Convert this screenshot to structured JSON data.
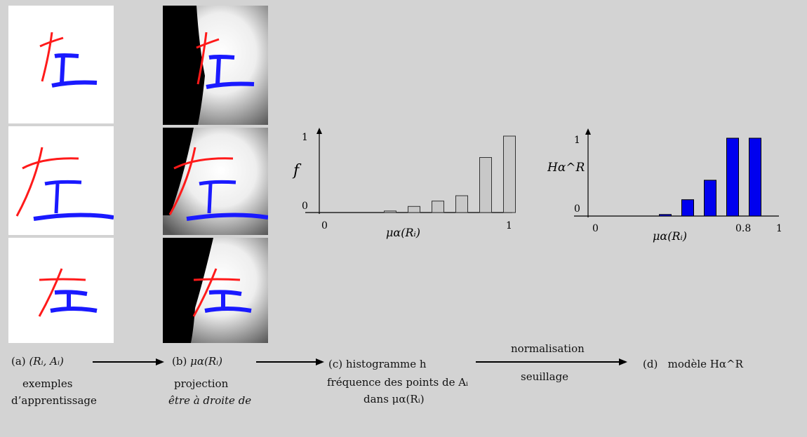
{
  "examples": [
    {
      "glyph": "左"
    },
    {
      "glyph": "左"
    },
    {
      "glyph": "左"
    }
  ],
  "colors": {
    "background": "#d3d3d3",
    "reference": "#ff1a1a",
    "argument": "#1a1aff",
    "bar_f_fill": "#c8c8c8",
    "bar_h_fill": "#0000ee"
  },
  "steps": {
    "a": {
      "label": "(a)",
      "symbol": "(Rᵢ, Aᵢ)",
      "line1": "exemples",
      "line2": "d’apprentissage"
    },
    "b": {
      "label": "(b)",
      "symbol": "μα(Rᵢ)",
      "line1": "projection",
      "line2": "être à droite de"
    },
    "c": {
      "label": "(c)",
      "symbol": "histogramme h",
      "line1": "fréquence des points de Aᵢ",
      "line2": "dans μα(Rᵢ)"
    },
    "ab_to_d": {
      "top": "normalisation",
      "bottom": "seuillage"
    },
    "d": {
      "label": "(d)",
      "symbol": "modèle Hα^R"
    }
  },
  "chart_data": [
    {
      "type": "bar",
      "ylabel": "f",
      "xlabel": "μα(Rᵢ)",
      "x_ticks": [
        "0",
        "1"
      ],
      "y_ticks": [
        "0",
        "1"
      ],
      "xlim": [
        0,
        1
      ],
      "ylim": [
        0,
        1
      ],
      "x": [
        0.3,
        0.4,
        0.5,
        0.6,
        0.7,
        0.8
      ],
      "values": [
        0.02,
        0.08,
        0.15,
        0.22,
        0.72,
        1.0
      ]
    },
    {
      "type": "bar",
      "ylabel": "Hα^R",
      "xlabel": "μα(Rᵢ)",
      "x_ticks": [
        "0",
        "0.8",
        "1"
      ],
      "y_ticks": [
        "0",
        "1"
      ],
      "xlim": [
        0,
        1
      ],
      "ylim": [
        0,
        1
      ],
      "x": [
        0.4,
        0.5,
        0.6,
        0.7,
        0.8
      ],
      "values": [
        0.02,
        0.21,
        0.46,
        1.0,
        1.0
      ]
    }
  ]
}
